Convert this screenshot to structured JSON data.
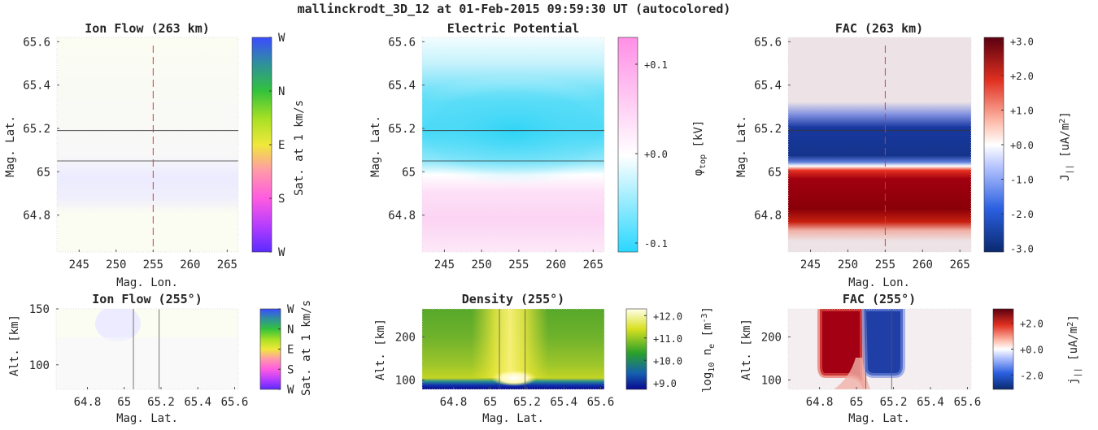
{
  "suptitle": "mallinckrodt_3D_12 at 01-Feb-2015 09:59:30 UT (autocolored)",
  "chart_data": [
    {
      "id": "ion_flow_map",
      "type": "heatmap",
      "title": "Ion Flow (263 km)",
      "xlabel": "Mag. Lon.",
      "ylabel": "Mag. Lat.",
      "xlim": [
        242,
        266.5
      ],
      "ylim": [
        64.63,
        65.62
      ],
      "xticks": [
        "245",
        "250",
        "255",
        "260",
        "265"
      ],
      "yticks": [
        "64.8",
        "65",
        "65.2",
        "65.4",
        "65.6"
      ],
      "arc_lats": [
        65.19,
        65.05
      ],
      "meridian_lon": 255,
      "colorbar": {
        "label": "Sat. at 1 km/s",
        "ticks": [
          "W",
          "N",
          "E",
          "S",
          "W"
        ]
      }
    },
    {
      "id": "potential_map",
      "type": "heatmap",
      "title": "Electric Potential",
      "xlabel": "",
      "ylabel": "Mag. Lat.",
      "xlim": [
        242,
        266.5
      ],
      "ylim": [
        64.63,
        65.62
      ],
      "xticks": [
        "245",
        "250",
        "255",
        "260",
        "265"
      ],
      "yticks": [
        "64.8",
        "65",
        "65.2",
        "65.4",
        "65.6"
      ],
      "arc_lats": [
        65.19,
        65.05
      ],
      "colorbar": {
        "label_main": "φ",
        "label_sub": "top",
        "label_unit": " [kV]",
        "ticks": [
          "+0.1",
          "+0.0",
          "-0.1"
        ],
        "range": [
          -0.11,
          0.13
        ]
      }
    },
    {
      "id": "fac_map",
      "type": "heatmap",
      "title": "FAC (263 km)",
      "xlabel": "Mag. Lon.",
      "ylabel": "Mag. Lat.",
      "xlim": [
        242,
        266.5
      ],
      "ylim": [
        64.63,
        65.62
      ],
      "xticks": [
        "245",
        "250",
        "255",
        "260",
        "265"
      ],
      "yticks": [
        "64.8",
        "65",
        "65.2",
        "65.4",
        "65.6"
      ],
      "arc_lats": [
        65.19
      ],
      "meridian_lon": 255,
      "colorbar": {
        "label_main": "J",
        "label_sub": "||",
        "label_unit": " [uA/m",
        "label_sup": "2",
        "label_end": "]",
        "ticks": [
          "+3.0",
          "+2.0",
          "+1.0",
          "+0.0",
          "-1.0",
          "-2.0",
          "-3.0"
        ],
        "range": [
          -3.1,
          3.1
        ]
      }
    },
    {
      "id": "ion_flow_alt",
      "type": "heatmap",
      "title": "Ion Flow (255°)",
      "xlabel": "Mag. Lat.",
      "ylabel": "Alt. [km]",
      "xlim": [
        64.63,
        65.62
      ],
      "ylim": [
        78,
        150
      ],
      "xticks": [
        "64.8",
        "65",
        "65.2",
        "65.4",
        "65.6"
      ],
      "yticks": [
        "100",
        "150"
      ],
      "arc_lats": [
        65.05,
        65.19
      ],
      "colorbar": {
        "label": "Sat. at 1 km/s",
        "ticks": [
          "W",
          "N",
          "E",
          "S",
          "W"
        ]
      }
    },
    {
      "id": "density_alt",
      "type": "heatmap",
      "title": "Density (255°)",
      "xlabel": "Mag. Lat.",
      "ylabel": "Alt. [km]",
      "xlim": [
        64.63,
        65.62
      ],
      "ylim": [
        78,
        265
      ],
      "xticks": [
        "64.8",
        "65",
        "65.2",
        "65.4",
        "65.6"
      ],
      "yticks": [
        "100",
        "200"
      ],
      "arc_lats": [
        65.05,
        65.19
      ],
      "colorbar": {
        "label_main": "log",
        "label_sub": "10",
        "label_mid": " n",
        "label_sub2": "e",
        "label_unit": " [m",
        "label_sup": "-3",
        "label_end": "]",
        "ticks": [
          "+12.0",
          "+11.0",
          "+10.0",
          "+9.0"
        ],
        "range": [
          8.7,
          12.3
        ]
      }
    },
    {
      "id": "fac_alt",
      "type": "heatmap",
      "title": "FAC (255°)",
      "xlabel": "Mag. Lat.",
      "ylabel": "Alt. [km]",
      "xlim": [
        64.63,
        65.62
      ],
      "ylim": [
        78,
        265
      ],
      "xticks": [
        "64.8",
        "65",
        "65.2",
        "65.4",
        "65.6"
      ],
      "yticks": [
        "100",
        "200"
      ],
      "arc_lats": [
        65.05,
        65.19
      ],
      "colorbar": {
        "label_main": "j",
        "label_sub": "||",
        "label_unit": " [uA/m",
        "label_sup": "2",
        "label_end": "]",
        "ticks": [
          "+2.0",
          "+0.0",
          "-2.0"
        ],
        "range": [
          -3.1,
          3.1
        ]
      }
    }
  ]
}
